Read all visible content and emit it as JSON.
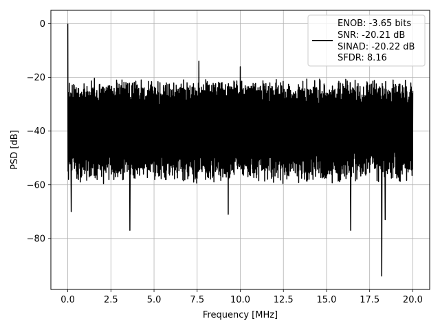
{
  "chart_data": {
    "type": "line",
    "xlabel": "Frequency [MHz]",
    "ylabel": "PSD [dB]",
    "xlim": [
      -0.98,
      20.98
    ],
    "ylim": [
      -99,
      5
    ],
    "xticks": [
      0.0,
      2.5,
      5.0,
      7.5,
      10.0,
      12.5,
      15.0,
      17.5,
      20.0
    ],
    "xtick_labels": [
      "0.0",
      "2.5",
      "5.0",
      "7.5",
      "10.0",
      "12.5",
      "15.0",
      "17.5",
      "20.0"
    ],
    "yticks": [
      0,
      -20,
      -40,
      -60,
      -80
    ],
    "ytick_labels": [
      "0",
      "−20",
      "−40",
      "−60",
      "−80"
    ],
    "grid": true,
    "legend": {
      "position": "top-right",
      "lines": [
        "ENOB: -3.65 bits",
        "SNR: -20.21 dB",
        "SINAD: -20.22 dB",
        "SFDR: 8.16"
      ]
    },
    "series": [
      {
        "color": "#000000",
        "noise": {
          "x_range": [
            0.0,
            20.0
          ],
          "upper_envelope_db": -22,
          "upper_extreme_db": -20,
          "lower_envelope_db": -58,
          "typical_lower_db": -55
        },
        "peaks": [
          {
            "x": 0.0,
            "y": 0.0
          },
          {
            "x": 7.6,
            "y": -14.0
          },
          {
            "x": 10.0,
            "y": -16.0
          }
        ],
        "dips": [
          {
            "x": 0.2,
            "y": -70.0
          },
          {
            "x": 3.6,
            "y": -77.0
          },
          {
            "x": 9.3,
            "y": -71.0
          },
          {
            "x": 16.4,
            "y": -77.0
          },
          {
            "x": 18.2,
            "y": -94.0
          },
          {
            "x": 18.4,
            "y": -73.0
          }
        ]
      }
    ]
  }
}
